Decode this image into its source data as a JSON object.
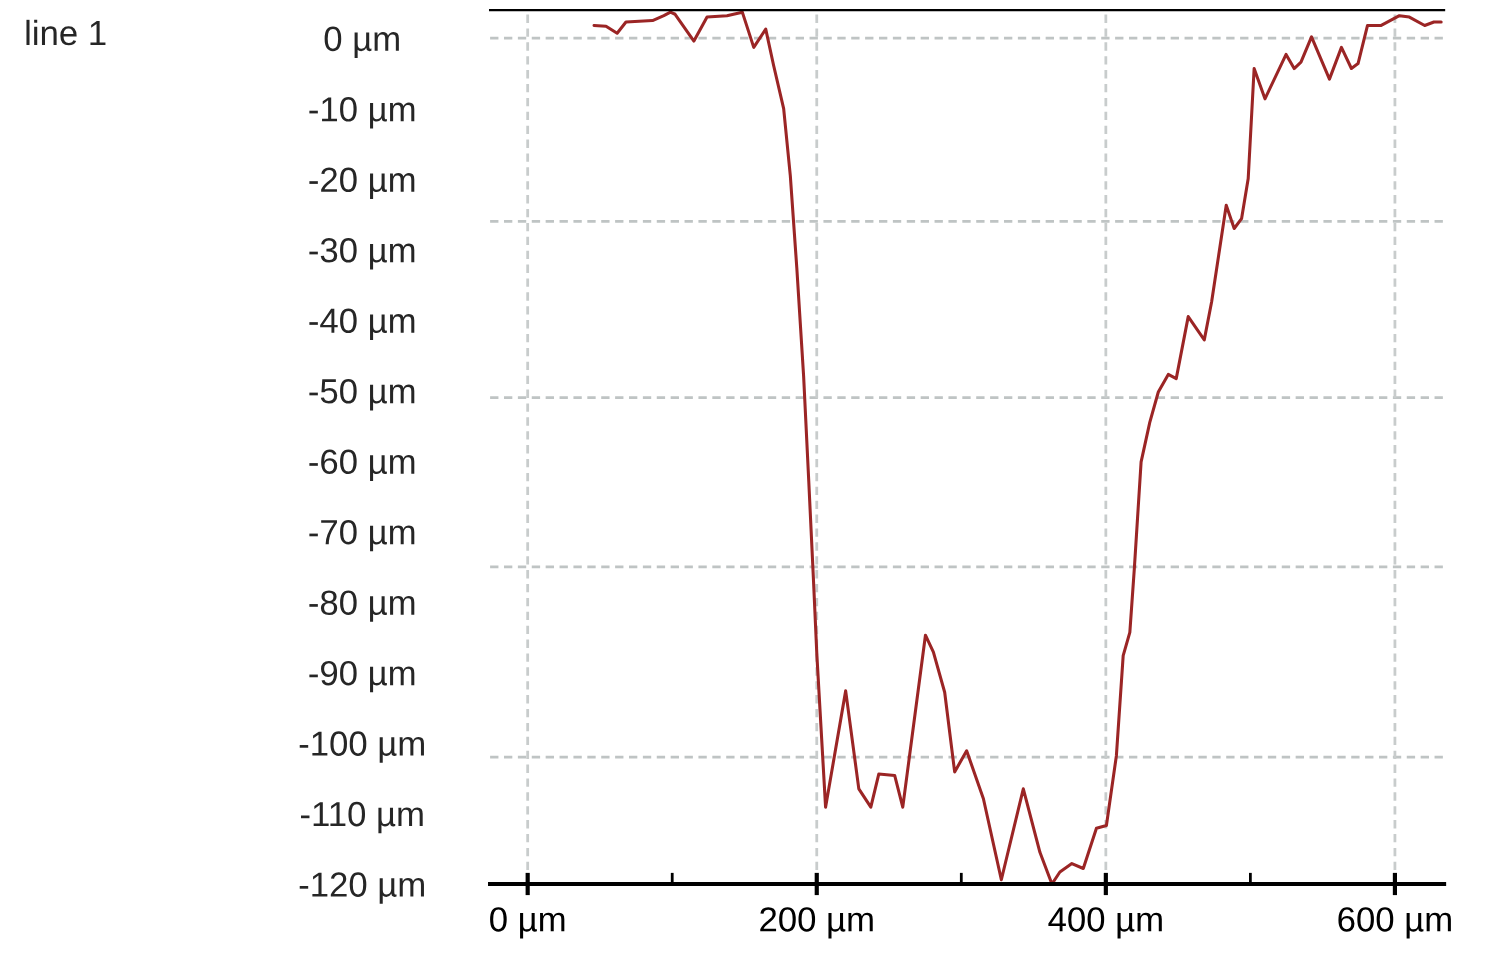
{
  "chart_data": {
    "type": "line",
    "title": "line 1",
    "x": [
      45.9,
      54.2,
      61.9,
      68.0,
      86.4,
      94.2,
      98.8,
      102.0,
      115.0,
      124.1,
      137.9,
      148.5,
      156.4,
      164.7,
      170.2,
      177.1,
      181.7,
      186.2,
      190.9,
      194.5,
      197.8,
      200.1,
      206.1,
      220.0,
      229.1,
      237.4,
      242.9,
      253.9,
      259.5,
      275.2,
      280.7,
      288.5,
      295.4,
      303.7,
      315.3,
      327.7,
      342.9,
      354.4,
      362.7,
      368.2,
      376.5,
      384.4,
      393.5,
      400.4,
      407.3,
      412.0,
      416.6,
      419.7,
      424.4,
      430.4,
      436.3,
      443.2,
      448.7,
      457.0,
      468.1,
      473.2,
      483.3,
      488.8,
      493.9,
      498.5,
      502.6,
      510.1,
      524.7,
      530.3,
      535.0,
      542.3,
      554.7,
      563.0,
      569.9,
      574.5,
      581.0,
      590.2,
      603.1,
      610.0,
      620.6,
      627.0,
      632.0
    ],
    "series": [
      {
        "color": "#9b2525",
        "values": [
          1.8,
          1.7,
          0.7,
          2.3,
          2.5,
          3.2,
          3.7,
          3.4,
          -0.4,
          3.0,
          3.2,
          3.7,
          -1.3,
          1.3,
          -3.9,
          -10.0,
          -19.5,
          -32.6,
          -47.9,
          -63.0,
          -77.2,
          -87.6,
          -109.1,
          -92.6,
          -106.5,
          -109.1,
          -104.4,
          -104.6,
          -109.1,
          -84.7,
          -87.1,
          -92.8,
          -104.1,
          -101.1,
          -107.9,
          -119.4,
          -106.5,
          -115.5,
          -120.0,
          -118.3,
          -117.1,
          -117.8,
          -112.1,
          -111.7,
          -101.8,
          -87.6,
          -84.3,
          -75.3,
          -60.1,
          -54.5,
          -50.2,
          -47.7,
          -48.3,
          -39.5,
          -42.8,
          -37.4,
          -23.7,
          -27.0,
          -25.6,
          -19.9,
          -4.3,
          -8.6,
          -2.3,
          -4.3,
          -3.4,
          0.2,
          -5.8,
          -1.3,
          -4.3,
          -3.6,
          1.8,
          1.8,
          3.2,
          3.0,
          1.8,
          2.3,
          2.3
        ]
      }
    ],
    "xlim": [
      -26,
      634
    ],
    "ylim": [
      -120,
      4
    ],
    "xticks": [
      {
        "value": 0,
        "label": "0 µm"
      },
      {
        "value": 100,
        "label": null
      },
      {
        "value": 200,
        "label": "200 µm"
      },
      {
        "value": 300,
        "label": null
      },
      {
        "value": 400,
        "label": "400 µm"
      },
      {
        "value": 500,
        "label": null
      },
      {
        "value": 600,
        "label": "600 µm"
      }
    ],
    "yticks": [
      {
        "value": 0,
        "label": "0 µm"
      },
      {
        "value": -10,
        "label": "-10 µm"
      },
      {
        "value": -20,
        "label": "-20 µm"
      },
      {
        "value": -30,
        "label": "-30 µm"
      },
      {
        "value": -40,
        "label": "-40 µm"
      },
      {
        "value": -50,
        "label": "-50 µm"
      },
      {
        "value": -60,
        "label": "-60 µm"
      },
      {
        "value": -70,
        "label": "-70 µm"
      },
      {
        "value": -80,
        "label": "-80 µm"
      },
      {
        "value": -90,
        "label": "-90 µm"
      },
      {
        "value": -100,
        "label": "-100 µm"
      },
      {
        "value": -110,
        "label": "-110 µm"
      },
      {
        "value": -120,
        "label": "-120 µm"
      }
    ],
    "ref_lines": [
      {
        "axis": "y",
        "value": 0,
        "color": "#bfc4c4",
        "line_style": "dashed"
      },
      {
        "axis": "y",
        "value": -26,
        "color": "#bfc4c4",
        "line_style": "dashed"
      },
      {
        "axis": "y",
        "value": -51,
        "color": "#bfc4c4",
        "line_style": "dashed"
      },
      {
        "axis": "y",
        "value": -75,
        "color": "#bfc4c4",
        "line_style": "dashed"
      },
      {
        "axis": "y",
        "value": -102,
        "color": "#bfc4c4",
        "line_style": "dashed"
      }
    ],
    "grid": "x",
    "marker": "none",
    "line_style": "solid"
  }
}
